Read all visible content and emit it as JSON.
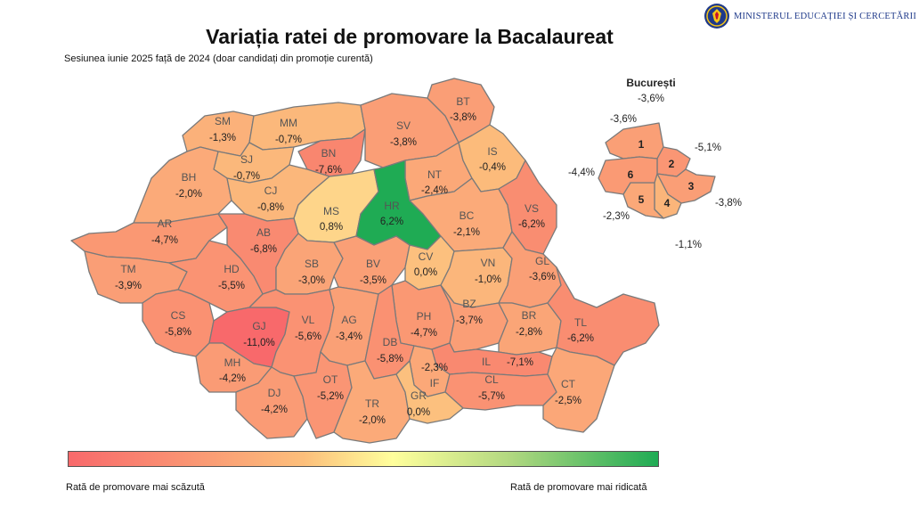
{
  "header": {
    "ministry": "MINISTERUL EDUCAȚIEI ȘI CERCETĂRII",
    "title": "Variația ratei de promovare la Bacalaureat",
    "subtitle": "Sesiunea iunie 2025 față de 2024 (doar candidați din promoție curentă)"
  },
  "counties": [
    {
      "code": "SM",
      "value": "-1,3%",
      "color": "#fbb17a"
    },
    {
      "code": "MM",
      "value": "-0,7%",
      "color": "#fbb87b"
    },
    {
      "code": "BN",
      "value": "-7,6%",
      "color": "#f9866f"
    },
    {
      "code": "SV",
      "value": "-3,8%",
      "color": "#fa9e76"
    },
    {
      "code": "BT",
      "value": "-3,8%",
      "color": "#fa9e76"
    },
    {
      "code": "SJ",
      "value": "-0,7%",
      "color": "#fbb87b"
    },
    {
      "code": "BH",
      "value": "-2,0%",
      "color": "#fbaa79"
    },
    {
      "code": "CJ",
      "value": "-0,8%",
      "color": "#fbb77b"
    },
    {
      "code": "NT",
      "value": "-2,4%",
      "color": "#fba878"
    },
    {
      "code": "IS",
      "value": "-0,4%",
      "color": "#fcbb7b"
    },
    {
      "code": "MS",
      "value": "0,8%",
      "color": "#fed58a"
    },
    {
      "code": "HR",
      "value": "6,2%",
      "color": "#1fab54"
    },
    {
      "code": "AR",
      "value": "-4,7%",
      "color": "#fa9873"
    },
    {
      "code": "AB",
      "value": "-6,8%",
      "color": "#f98a71"
    },
    {
      "code": "BC",
      "value": "-2,1%",
      "color": "#fbaa79"
    },
    {
      "code": "VS",
      "value": "-6,2%",
      "color": "#f98d71"
    },
    {
      "code": "TM",
      "value": "-3,9%",
      "color": "#fa9e76"
    },
    {
      "code": "HD",
      "value": "-5,5%",
      "color": "#fa9373"
    },
    {
      "code": "SB",
      "value": "-3,0%",
      "color": "#faa477"
    },
    {
      "code": "BV",
      "value": "-3,5%",
      "color": "#fa9f76"
    },
    {
      "code": "CV",
      "value": "0,0%",
      "color": "#fcc07e"
    },
    {
      "code": "VN",
      "value": "-1,0%",
      "color": "#fbb67b"
    },
    {
      "code": "GL",
      "value": "-3,6%",
      "color": "#fa9f76"
    },
    {
      "code": "CS",
      "value": "-5,8%",
      "color": "#fa9172"
    },
    {
      "code": "GJ",
      "value": "-11,0%",
      "color": "#f8696b"
    },
    {
      "code": "VL",
      "value": "-5,6%",
      "color": "#fa9273"
    },
    {
      "code": "AG",
      "value": "-3,4%",
      "color": "#faa076"
    },
    {
      "code": "PH",
      "value": "-4,7%",
      "color": "#fa9873"
    },
    {
      "code": "BZ",
      "value": "-3,7%",
      "color": "#fa9e76"
    },
    {
      "code": "BR",
      "value": "-2,8%",
      "color": "#faa577"
    },
    {
      "code": "TL",
      "value": "-6,2%",
      "color": "#f98d71"
    },
    {
      "code": "DB",
      "value": "-5,8%",
      "color": "#fa9172"
    },
    {
      "code": "MH",
      "value": "-4,2%",
      "color": "#fa9b75"
    },
    {
      "code": "IL",
      "value": "-7,1%",
      "color": "#f98970"
    },
    {
      "code": "IF",
      "value": "-2,3%",
      "color": "#fba878"
    },
    {
      "code": "DJ",
      "value": "-4,2%",
      "color": "#fa9b75"
    },
    {
      "code": "OT",
      "value": "-5,2%",
      "color": "#fa9574"
    },
    {
      "code": "CL",
      "value": "-5,7%",
      "color": "#fa9273"
    },
    {
      "code": "CT",
      "value": "-2,5%",
      "color": "#fba778"
    },
    {
      "code": "TR",
      "value": "-2,0%",
      "color": "#fbaa79"
    },
    {
      "code": "GR",
      "value": "0,0%",
      "color": "#fcc07e"
    }
  ],
  "bucharest": {
    "title": "București",
    "total": "-3,6%",
    "sectors": [
      {
        "num": "1",
        "value": "-3,6%",
        "color": "#fa9f76"
      },
      {
        "num": "2",
        "value": "-5,1%",
        "color": "#fa9674"
      },
      {
        "num": "3",
        "value": "-3,8%",
        "color": "#fa9e76"
      },
      {
        "num": "4",
        "value": "-1,1%",
        "color": "#fbb57a"
      },
      {
        "num": "5",
        "value": "-2,3%",
        "color": "#fba878"
      },
      {
        "num": "6",
        "value": "-4,4%",
        "color": "#fa9a74"
      }
    ]
  },
  "legend": {
    "low_label": "Rată de promovare mai scăzută",
    "high_label": "Rată de promovare mai ridicată",
    "color_low": "#f8696b",
    "color_mid": "#ffff9c",
    "color_high": "#1fab54"
  }
}
